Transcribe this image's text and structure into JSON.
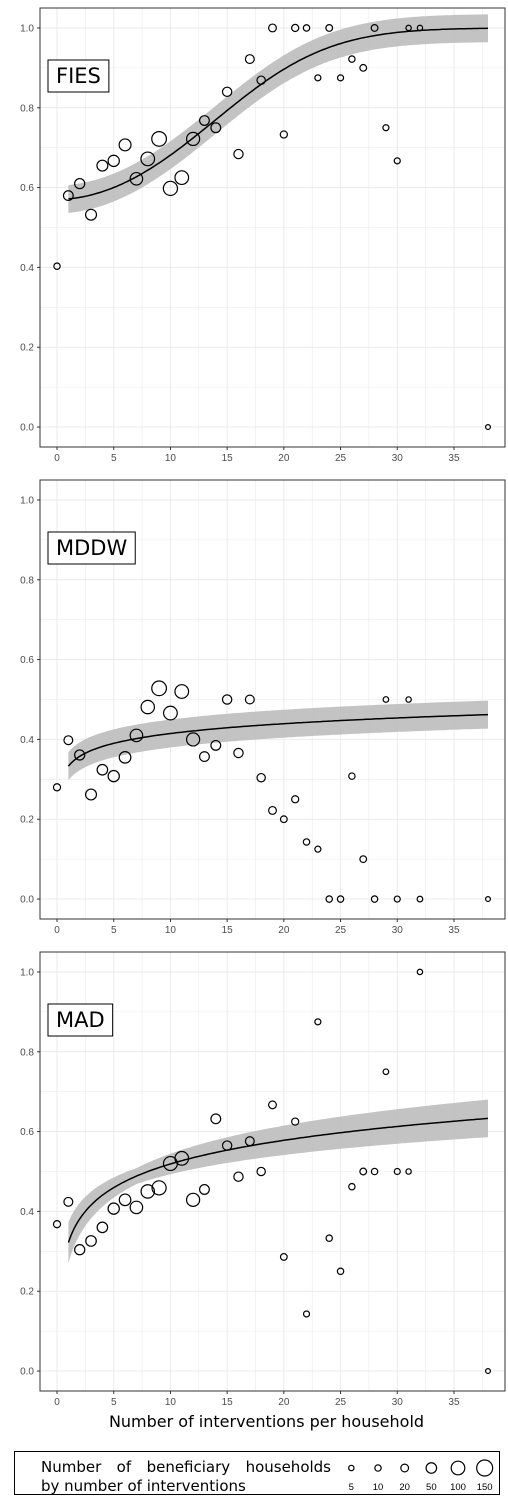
{
  "chart_data": [
    {
      "type": "scatter",
      "panel_label": "FIES",
      "xlabel": "",
      "ylabel": "",
      "xlim": [
        -1.5,
        39.5
      ],
      "ylim": [
        -0.05,
        1.05
      ],
      "x_ticks": [
        "0",
        "5",
        "10",
        "15",
        "20",
        "25",
        "30",
        "35"
      ],
      "y_ticks": [
        "0.0",
        "0.2",
        "0.4",
        "0.6",
        "0.8",
        "1.0"
      ],
      "points": [
        {
          "x": 0,
          "y": 0.403,
          "n": 10
        },
        {
          "x": 1,
          "y": 0.58,
          "n": 40
        },
        {
          "x": 2,
          "y": 0.61,
          "n": 45
        },
        {
          "x": 3,
          "y": 0.532,
          "n": 55
        },
        {
          "x": 4,
          "y": 0.655,
          "n": 55
        },
        {
          "x": 5,
          "y": 0.667,
          "n": 60
        },
        {
          "x": 6,
          "y": 0.707,
          "n": 70
        },
        {
          "x": 7,
          "y": 0.622,
          "n": 80
        },
        {
          "x": 8,
          "y": 0.672,
          "n": 100
        },
        {
          "x": 9,
          "y": 0.722,
          "n": 120
        },
        {
          "x": 10,
          "y": 0.598,
          "n": 110
        },
        {
          "x": 11,
          "y": 0.625,
          "n": 100
        },
        {
          "x": 12,
          "y": 0.722,
          "n": 90
        },
        {
          "x": 13,
          "y": 0.768,
          "n": 40
        },
        {
          "x": 14,
          "y": 0.75,
          "n": 40
        },
        {
          "x": 15,
          "y": 0.84,
          "n": 35
        },
        {
          "x": 16,
          "y": 0.684,
          "n": 35
        },
        {
          "x": 17,
          "y": 0.922,
          "n": 30
        },
        {
          "x": 18,
          "y": 0.869,
          "n": 25
        },
        {
          "x": 19,
          "y": 1.0,
          "n": 20
        },
        {
          "x": 20,
          "y": 0.733,
          "n": 15
        },
        {
          "x": 21,
          "y": 1.0,
          "n": 15
        },
        {
          "x": 22,
          "y": 1.0,
          "n": 10
        },
        {
          "x": 23,
          "y": 0.875,
          "n": 8
        },
        {
          "x": 24,
          "y": 1.0,
          "n": 12
        },
        {
          "x": 25,
          "y": 0.875,
          "n": 8
        },
        {
          "x": 26,
          "y": 0.922,
          "n": 10
        },
        {
          "x": 27,
          "y": 0.9,
          "n": 12
        },
        {
          "x": 28,
          "y": 1.0,
          "n": 12
        },
        {
          "x": 29,
          "y": 0.75,
          "n": 8
        },
        {
          "x": 30,
          "y": 0.667,
          "n": 8
        },
        {
          "x": 31,
          "y": 1.0,
          "n": 5
        },
        {
          "x": 32,
          "y": 1.0,
          "n": 5
        },
        {
          "x": 38,
          "y": 0.0,
          "n": 3
        }
      ],
      "fit": {
        "model": "logistic",
        "b0": 0.282,
        "b1": 0.0018,
        "b2": 0.0046,
        "ci": 0.035
      }
    },
    {
      "type": "scatter",
      "panel_label": "MDDW",
      "xlabel": "",
      "ylabel": "",
      "xlim": [
        -1.5,
        39.5
      ],
      "ylim": [
        -0.05,
        1.05
      ],
      "x_ticks": [
        "0",
        "5",
        "10",
        "15",
        "20",
        "25",
        "30",
        "35"
      ],
      "y_ticks": [
        "0.0",
        "0.2",
        "0.4",
        "0.6",
        "0.8",
        "1.0"
      ],
      "points": [
        {
          "x": 0,
          "y": 0.28,
          "n": 15
        },
        {
          "x": 1,
          "y": 0.398,
          "n": 30
        },
        {
          "x": 2,
          "y": 0.361,
          "n": 45
        },
        {
          "x": 3,
          "y": 0.262,
          "n": 55
        },
        {
          "x": 4,
          "y": 0.324,
          "n": 50
        },
        {
          "x": 5,
          "y": 0.308,
          "n": 60
        },
        {
          "x": 6,
          "y": 0.355,
          "n": 65
        },
        {
          "x": 7,
          "y": 0.41,
          "n": 80
        },
        {
          "x": 8,
          "y": 0.481,
          "n": 95
        },
        {
          "x": 9,
          "y": 0.528,
          "n": 120
        },
        {
          "x": 10,
          "y": 0.466,
          "n": 100
        },
        {
          "x": 11,
          "y": 0.52,
          "n": 100
        },
        {
          "x": 12,
          "y": 0.4,
          "n": 90
        },
        {
          "x": 13,
          "y": 0.357,
          "n": 40
        },
        {
          "x": 14,
          "y": 0.385,
          "n": 40
        },
        {
          "x": 15,
          "y": 0.5,
          "n": 35
        },
        {
          "x": 16,
          "y": 0.366,
          "n": 35
        },
        {
          "x": 17,
          "y": 0.5,
          "n": 30
        },
        {
          "x": 18,
          "y": 0.304,
          "n": 25
        },
        {
          "x": 19,
          "y": 0.222,
          "n": 20
        },
        {
          "x": 20,
          "y": 0.2,
          "n": 12
        },
        {
          "x": 21,
          "y": 0.25,
          "n": 15
        },
        {
          "x": 22,
          "y": 0.143,
          "n": 10
        },
        {
          "x": 23,
          "y": 0.125,
          "n": 8
        },
        {
          "x": 24,
          "y": 0.0,
          "n": 10
        },
        {
          "x": 25,
          "y": 0.0,
          "n": 10
        },
        {
          "x": 26,
          "y": 0.308,
          "n": 10
        },
        {
          "x": 27,
          "y": 0.1,
          "n": 12
        },
        {
          "x": 28,
          "y": 0.0,
          "n": 10
        },
        {
          "x": 29,
          "y": 0.5,
          "n": 6
        },
        {
          "x": 30,
          "y": 0.0,
          "n": 8
        },
        {
          "x": 31,
          "y": 0.5,
          "n": 5
        },
        {
          "x": 32,
          "y": 0.0,
          "n": 6
        },
        {
          "x": 38,
          "y": 0.0,
          "n": 3
        }
      ],
      "fit": {
        "model": "log",
        "a": 0.333,
        "b": 0.0355,
        "ci": 0.035
      }
    },
    {
      "type": "scatter",
      "panel_label": "MAD",
      "xlabel": "Number of interventions per household",
      "ylabel": "",
      "xlim": [
        -1.5,
        39.5
      ],
      "ylim": [
        -0.05,
        1.05
      ],
      "x_ticks": [
        "0",
        "5",
        "10",
        "15",
        "20",
        "25",
        "30",
        "35"
      ],
      "y_ticks": [
        "0.0",
        "0.2",
        "0.4",
        "0.6",
        "0.8",
        "1.0"
      ],
      "points": [
        {
          "x": 0,
          "y": 0.368,
          "n": 15
        },
        {
          "x": 1,
          "y": 0.424,
          "n": 30
        },
        {
          "x": 2,
          "y": 0.304,
          "n": 45
        },
        {
          "x": 3,
          "y": 0.326,
          "n": 50
        },
        {
          "x": 4,
          "y": 0.36,
          "n": 50
        },
        {
          "x": 5,
          "y": 0.407,
          "n": 60
        },
        {
          "x": 6,
          "y": 0.429,
          "n": 65
        },
        {
          "x": 7,
          "y": 0.41,
          "n": 80
        },
        {
          "x": 8,
          "y": 0.45,
          "n": 95
        },
        {
          "x": 9,
          "y": 0.459,
          "n": 110
        },
        {
          "x": 10,
          "y": 0.52,
          "n": 105
        },
        {
          "x": 11,
          "y": 0.533,
          "n": 100
        },
        {
          "x": 12,
          "y": 0.429,
          "n": 90
        },
        {
          "x": 13,
          "y": 0.455,
          "n": 40
        },
        {
          "x": 14,
          "y": 0.632,
          "n": 40
        },
        {
          "x": 15,
          "y": 0.565,
          "n": 35
        },
        {
          "x": 16,
          "y": 0.487,
          "n": 35
        },
        {
          "x": 17,
          "y": 0.576,
          "n": 30
        },
        {
          "x": 18,
          "y": 0.5,
          "n": 25
        },
        {
          "x": 19,
          "y": 0.667,
          "n": 20
        },
        {
          "x": 20,
          "y": 0.286,
          "n": 12
        },
        {
          "x": 21,
          "y": 0.625,
          "n": 15
        },
        {
          "x": 22,
          "y": 0.143,
          "n": 8
        },
        {
          "x": 23,
          "y": 0.875,
          "n": 8
        },
        {
          "x": 24,
          "y": 0.333,
          "n": 10
        },
        {
          "x": 25,
          "y": 0.25,
          "n": 10
        },
        {
          "x": 26,
          "y": 0.462,
          "n": 10
        },
        {
          "x": 27,
          "y": 0.5,
          "n": 12
        },
        {
          "x": 28,
          "y": 0.5,
          "n": 10
        },
        {
          "x": 29,
          "y": 0.75,
          "n": 6
        },
        {
          "x": 30,
          "y": 0.5,
          "n": 8
        },
        {
          "x": 31,
          "y": 0.5,
          "n": 5
        },
        {
          "x": 32,
          "y": 1.0,
          "n": 5
        },
        {
          "x": 38,
          "y": 0.0,
          "n": 3
        }
      ],
      "fit": {
        "model": "log",
        "a": 0.322,
        "b": 0.0855,
        "ci_min": 0.02,
        "ci_grow": 0.016
      }
    }
  ],
  "legend": {
    "title": [
      "Number of beneficiary households",
      "by number of interventions"
    ],
    "keys": [
      {
        "label": "5",
        "n": 5
      },
      {
        "label": "10",
        "n": 10
      },
      {
        "label": "20",
        "n": 20
      },
      {
        "label": "50",
        "n": 50
      },
      {
        "label": "100",
        "n": 100
      },
      {
        "label": "150",
        "n": 150
      }
    ]
  },
  "colors": {
    "panel_background": "#ffffff",
    "grid": "#ebebeb",
    "ribbon": "#bdbdbd",
    "fit_line": "#000000",
    "point_stroke": "#000000",
    "tick_text": "#4d4d4d"
  }
}
